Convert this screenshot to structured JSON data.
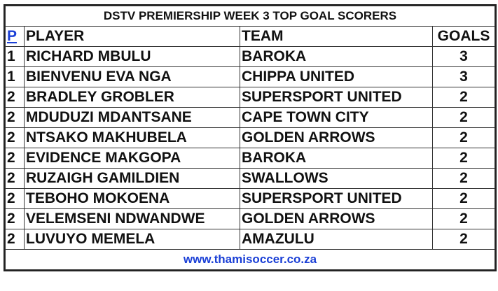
{
  "title": "DSTV PREMIERSHIP WEEK 3 TOP GOAL SCORERS",
  "headers": {
    "pos": "P",
    "player": "PLAYER",
    "team": "TEAM",
    "goals": "GOALS"
  },
  "rows": [
    {
      "pos": "1",
      "player": "RICHARD MBULU",
      "team": "BAROKA",
      "goals": "3"
    },
    {
      "pos": "1",
      "player": "BIENVENU EVA NGA",
      "team": "CHIPPA UNITED",
      "goals": "3"
    },
    {
      "pos": "2",
      "player": "BRADLEY GROBLER",
      "team": "SUPERSPORT UNITED",
      "goals": "2"
    },
    {
      "pos": "2",
      "player": "MDUDUZI MDANTSANE",
      "team": "CAPE TOWN CITY",
      "goals": "2"
    },
    {
      "pos": "2",
      "player": "NTSAKO MAKHUBELA",
      "team": "GOLDEN ARROWS",
      "goals": "2"
    },
    {
      "pos": "2",
      "player": "EVIDENCE MAKGOPA",
      "team": "BAROKA",
      "goals": "2"
    },
    {
      "pos": "2",
      "player": "RUZAIGH GAMILDIEN",
      "team": "SWALLOWS",
      "goals": "2"
    },
    {
      "pos": "2",
      "player": "TEBOHO MOKOENA",
      "team": "SUPERSPORT UNITED",
      "goals": "2"
    },
    {
      "pos": "2",
      "player": "VELEMSENI NDWANDWE",
      "team": "GOLDEN ARROWS",
      "goals": "2"
    },
    {
      "pos": "2",
      "player": "LUVUYO MEMELA",
      "team": "AMAZULU",
      "goals": "2"
    }
  ],
  "footer": "www.thamisoccer.co.za",
  "colors": {
    "link": "#1a3fd6",
    "border": "#222222"
  }
}
